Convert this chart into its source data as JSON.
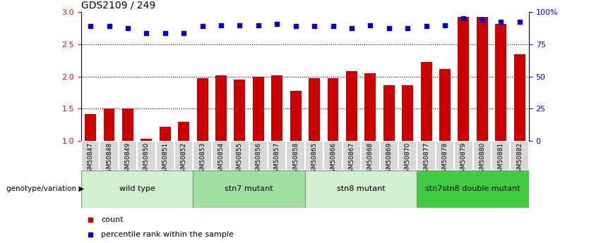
{
  "title": "GDS2109 / 249",
  "samples": [
    "GSM50847",
    "GSM50848",
    "GSM50849",
    "GSM50850",
    "GSM50851",
    "GSM50852",
    "GSM50853",
    "GSM50854",
    "GSM50855",
    "GSM50856",
    "GSM50857",
    "GSM50858",
    "GSM50865",
    "GSM50866",
    "GSM50867",
    "GSM50868",
    "GSM50869",
    "GSM50870",
    "GSM50877",
    "GSM50878",
    "GSM50879",
    "GSM50880",
    "GSM50881",
    "GSM50882"
  ],
  "counts": [
    1.42,
    1.5,
    1.5,
    1.03,
    1.22,
    1.3,
    1.97,
    2.02,
    1.95,
    2.0,
    2.02,
    1.78,
    1.97,
    1.97,
    2.08,
    2.05,
    1.87,
    1.87,
    2.23,
    2.12,
    2.93,
    2.93,
    2.82,
    2.35
  ],
  "percentile_ranks_left_scale": [
    2.78,
    2.78,
    2.75,
    2.68,
    2.68,
    2.68,
    2.78,
    2.8,
    2.8,
    2.8,
    2.82,
    2.78,
    2.78,
    2.78,
    2.75,
    2.8,
    2.75,
    2.75,
    2.78,
    2.8,
    2.9,
    2.88,
    2.85,
    2.85
  ],
  "groups": [
    {
      "label": "wild type",
      "start": 0,
      "end": 5,
      "color": "#d0f0d0"
    },
    {
      "label": "stn7 mutant",
      "start": 6,
      "end": 11,
      "color": "#a0e0a0"
    },
    {
      "label": "stn8 mutant",
      "start": 12,
      "end": 17,
      "color": "#d0f0d0"
    },
    {
      "label": "stn7stn8 double mutant",
      "start": 18,
      "end": 23,
      "color": "#40cc40"
    }
  ],
  "bar_color": "#cc0000",
  "dot_color": "#0000cc",
  "ylim_left": [
    1.0,
    3.0
  ],
  "ylim_right": [
    0,
    100
  ],
  "yticks_left": [
    1.0,
    1.5,
    2.0,
    2.5,
    3.0
  ],
  "yticks_right": [
    0,
    25,
    50,
    75,
    100
  ],
  "ytick_labels_right": [
    "0",
    "25",
    "50",
    "75",
    "100%"
  ],
  "grid_values": [
    1.5,
    2.0,
    2.5
  ],
  "legend_count_label": "count",
  "legend_pct_label": "percentile rank within the sample",
  "genotype_label": "genotype/variation"
}
